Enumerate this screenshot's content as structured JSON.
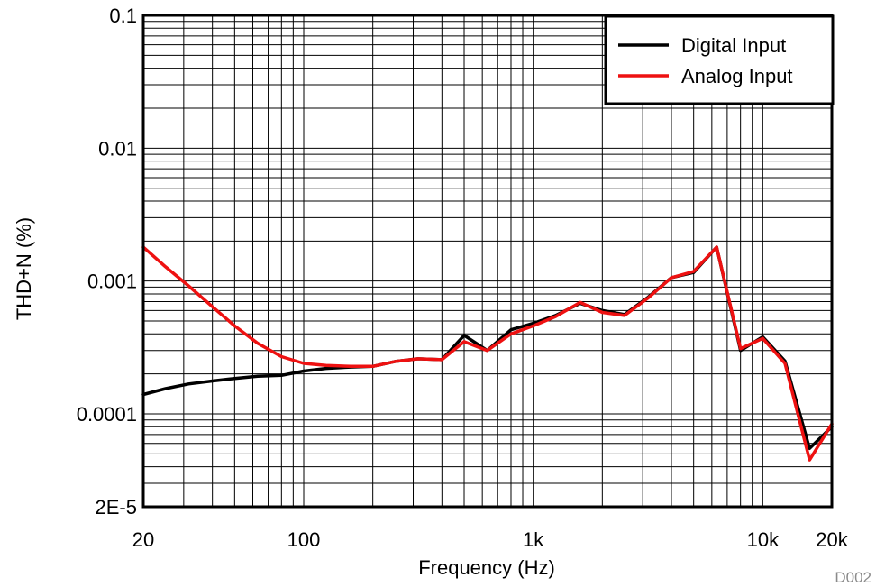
{
  "chart_data": {
    "type": "line",
    "title": "",
    "xlabel": "Frequency (Hz)",
    "ylabel": "THD+N (%)",
    "x_scale": "log",
    "y_scale": "log",
    "xlim": [
      20,
      20000
    ],
    "ylim": [
      2e-05,
      0.1
    ],
    "grid": true,
    "legend_position": "top-right",
    "x_ticks": [
      {
        "value": 20,
        "label": "20"
      },
      {
        "value": 100,
        "label": "100"
      },
      {
        "value": 1000,
        "label": "1k"
      },
      {
        "value": 10000,
        "label": "10k"
      },
      {
        "value": 20000,
        "label": "20k"
      }
    ],
    "y_ticks": [
      {
        "value": 0.1,
        "label": "0.1"
      },
      {
        "value": 0.01,
        "label": "0.01"
      },
      {
        "value": 0.001,
        "label": "0.001"
      },
      {
        "value": 0.0001,
        "label": "0.0001"
      },
      {
        "value": 2e-05,
        "label": "2E-5"
      }
    ],
    "series": [
      {
        "name": "Digital Input",
        "color": "#000000",
        "x": [
          20,
          25,
          31.5,
          40,
          50,
          63,
          80,
          100,
          125,
          160,
          200,
          250,
          315,
          400,
          500,
          630,
          800,
          1000,
          1250,
          1600,
          2000,
          2500,
          3150,
          4000,
          5000,
          6300,
          8000,
          10000,
          12500,
          16000,
          20000
        ],
        "y": [
          0.00014,
          0.000155,
          0.000168,
          0.000177,
          0.000185,
          0.000192,
          0.000195,
          0.00021,
          0.00022,
          0.000225,
          0.000228,
          0.000248,
          0.00026,
          0.000256,
          0.00039,
          0.0003,
          0.00043,
          0.00048,
          0.00055,
          0.00068,
          0.0006,
          0.00056,
          0.00075,
          0.00106,
          0.00116,
          0.0018,
          0.0003,
          0.00038,
          0.00025,
          5.5e-05,
          8e-05
        ]
      },
      {
        "name": "Analog Input",
        "color": "#ee1111",
        "x": [
          20,
          25,
          31.5,
          40,
          50,
          63,
          80,
          100,
          125,
          160,
          200,
          250,
          315,
          400,
          500,
          630,
          800,
          1000,
          1250,
          1600,
          2000,
          2500,
          3150,
          4000,
          5000,
          6300,
          8000,
          10000,
          12500,
          16000,
          20000
        ],
        "y": [
          0.0018,
          0.00128,
          0.00092,
          0.00064,
          0.00046,
          0.00034,
          0.00027,
          0.00024,
          0.000232,
          0.000228,
          0.000228,
          0.000248,
          0.00026,
          0.000256,
          0.00035,
          0.0003,
          0.0004,
          0.00046,
          0.00054,
          0.00069,
          0.00058,
          0.00055,
          0.00074,
          0.00106,
          0.00118,
          0.0018,
          0.00031,
          0.00037,
          0.00024,
          4.5e-05,
          8.4e-05
        ]
      }
    ]
  },
  "figure_code": "D002"
}
